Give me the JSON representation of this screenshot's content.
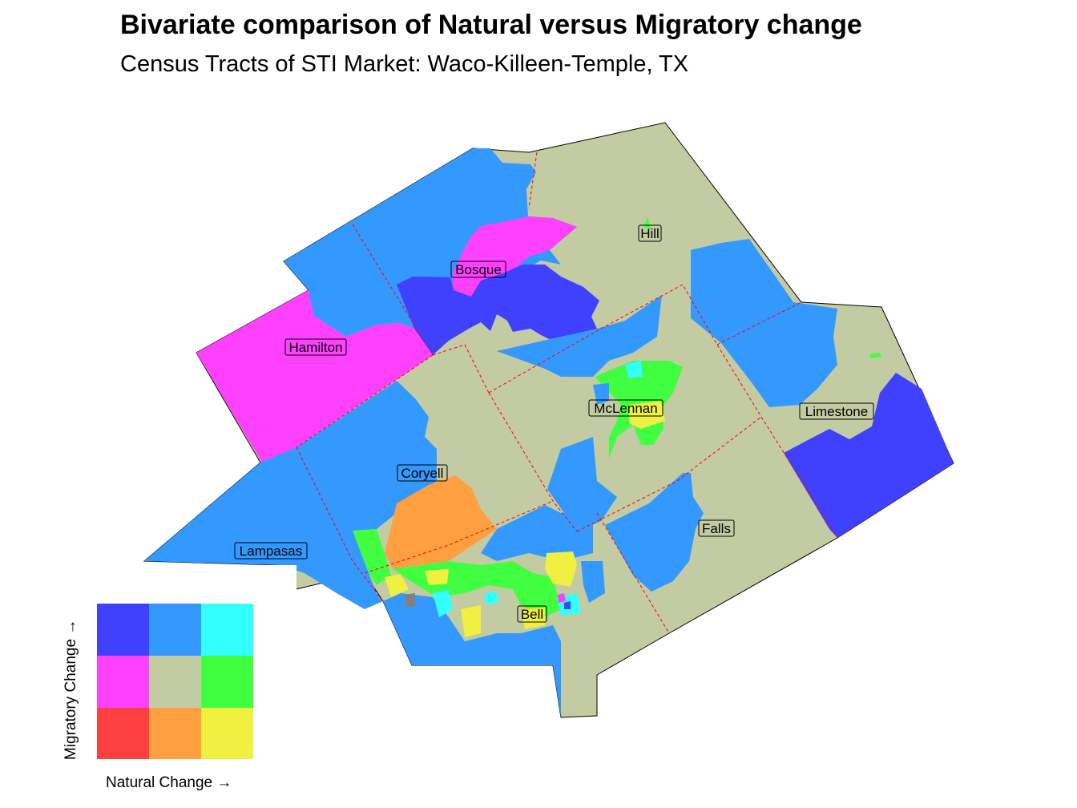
{
  "title": "Bivariate comparison of Natural versus Migratory change",
  "subtitle": "Census Tracts of STI Market: Waco-Killeen-Temple, TX",
  "colors": {
    "background_tan": "#c3cba3",
    "blue": "#3399ff",
    "dark_blue": "#4040ff",
    "magenta": "#ff40ff",
    "cyan": "#33ffff",
    "green": "#40ff40",
    "orange": "#ffa040",
    "yellow": "#f0f040",
    "red": "#ff4040",
    "gray": "#808080",
    "county_border": "#ff0000"
  },
  "counties": [
    {
      "name": "Hill"
    },
    {
      "name": "Bosque"
    },
    {
      "name": "Hamilton"
    },
    {
      "name": "McLennan"
    },
    {
      "name": "Limestone"
    },
    {
      "name": "Coryell"
    },
    {
      "name": "Lampasas"
    },
    {
      "name": "Falls"
    },
    {
      "name": "Bell"
    }
  ],
  "legend": {
    "x_label": "Natural Change →",
    "y_label": "Migratory Change →",
    "grid_rows_top_to_bottom": [
      [
        "#4040ff",
        "#3399ff",
        "#33ffff"
      ],
      [
        "#ff40ff",
        "#c3cba3",
        "#40ff40"
      ],
      [
        "#ff4040",
        "#ffa040",
        "#f0f040"
      ]
    ]
  }
}
